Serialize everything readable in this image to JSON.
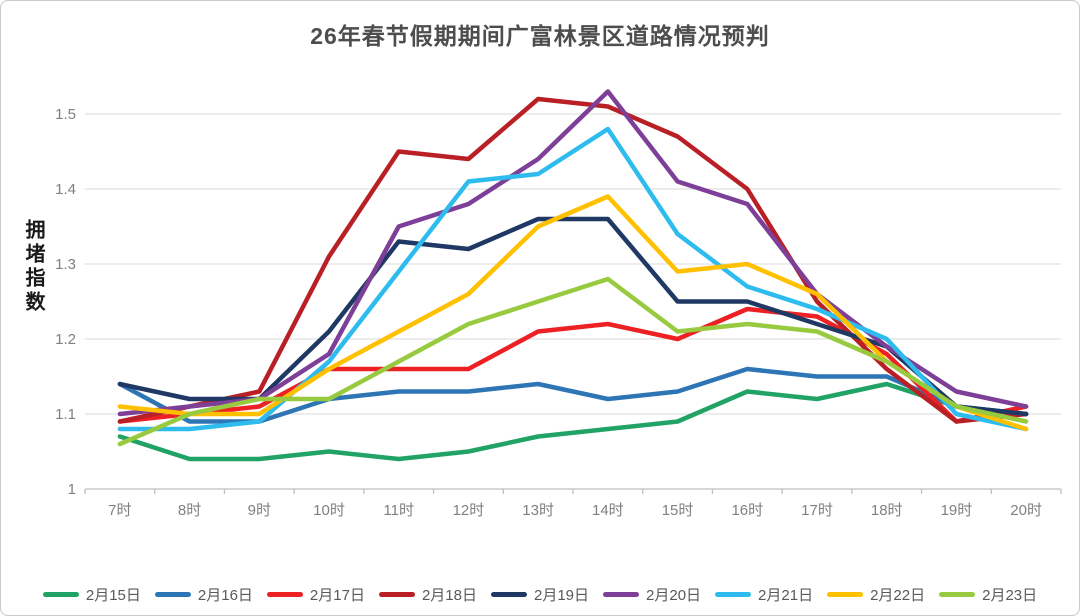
{
  "chart": {
    "title": "26年春节假期期间广富林景区道路情况预判",
    "y_axis_title": "拥堵指数"
  },
  "chart_data": {
    "type": "line",
    "title": "26年春节假期期间广富林景区道路情况预判",
    "xlabel": "",
    "ylabel": "拥堵指数",
    "categories": [
      "7时",
      "8时",
      "9时",
      "10时",
      "11时",
      "12时",
      "13时",
      "14时",
      "15时",
      "16时",
      "17时",
      "18时",
      "19时",
      "20时"
    ],
    "ylim": [
      1,
      1.5
    ],
    "yticks": [
      "1",
      "1.1",
      "1.2",
      "1.3",
      "1.4",
      "1.5"
    ],
    "ytick_values": [
      1,
      1.1,
      1.2,
      1.3,
      1.4,
      1.5
    ],
    "grid": true,
    "legend_position": "bottom",
    "colors": {
      "gridline": "#d9d9d9",
      "axis_line": "#bfbfbf",
      "tick_label": "#808080",
      "title_text": "#4d4d4d",
      "legend_text": "#595959"
    },
    "series": [
      {
        "name": "2月15日",
        "color": "#21a366",
        "values": [
          1.07,
          1.04,
          1.04,
          1.05,
          1.04,
          1.05,
          1.07,
          1.08,
          1.09,
          1.13,
          1.12,
          1.14,
          1.11,
          1.1
        ]
      },
      {
        "name": "2月16日",
        "color": "#2e75b6",
        "values": [
          1.14,
          1.09,
          1.09,
          1.12,
          1.13,
          1.13,
          1.14,
          1.12,
          1.13,
          1.16,
          1.15,
          1.15,
          1.11,
          1.1
        ]
      },
      {
        "name": "2月17日",
        "color": "#ed2024",
        "values": [
          1.09,
          1.1,
          1.11,
          1.16,
          1.16,
          1.16,
          1.21,
          1.22,
          1.2,
          1.24,
          1.23,
          1.18,
          1.09,
          1.11
        ]
      },
      {
        "name": "2月18日",
        "color": "#b92025",
        "values": [
          1.09,
          1.11,
          1.13,
          1.31,
          1.45,
          1.44,
          1.52,
          1.51,
          1.47,
          1.4,
          1.25,
          1.16,
          1.09,
          1.1
        ]
      },
      {
        "name": "2月19日",
        "color": "#203864",
        "values": [
          1.14,
          1.12,
          1.12,
          1.21,
          1.33,
          1.32,
          1.36,
          1.36,
          1.25,
          1.25,
          1.22,
          1.19,
          1.11,
          1.1
        ]
      },
      {
        "name": "2月20日",
        "color": "#7d3f98",
        "values": [
          1.1,
          1.11,
          1.12,
          1.18,
          1.35,
          1.38,
          1.44,
          1.53,
          1.41,
          1.38,
          1.26,
          1.19,
          1.13,
          1.11
        ]
      },
      {
        "name": "2月21日",
        "color": "#2ebcee",
        "values": [
          1.08,
          1.08,
          1.09,
          1.17,
          1.29,
          1.41,
          1.42,
          1.48,
          1.34,
          1.27,
          1.24,
          1.2,
          1.1,
          1.08
        ]
      },
      {
        "name": "2月22日",
        "color": "#ffc000",
        "values": [
          1.11,
          1.1,
          1.1,
          1.16,
          1.21,
          1.26,
          1.35,
          1.39,
          1.29,
          1.3,
          1.26,
          1.17,
          1.11,
          1.08
        ]
      },
      {
        "name": "2月23日",
        "color": "#97ca3f",
        "values": [
          1.06,
          1.1,
          1.12,
          1.12,
          1.17,
          1.22,
          1.25,
          1.28,
          1.21,
          1.22,
          1.21,
          1.17,
          1.11,
          1.09
        ]
      }
    ]
  }
}
